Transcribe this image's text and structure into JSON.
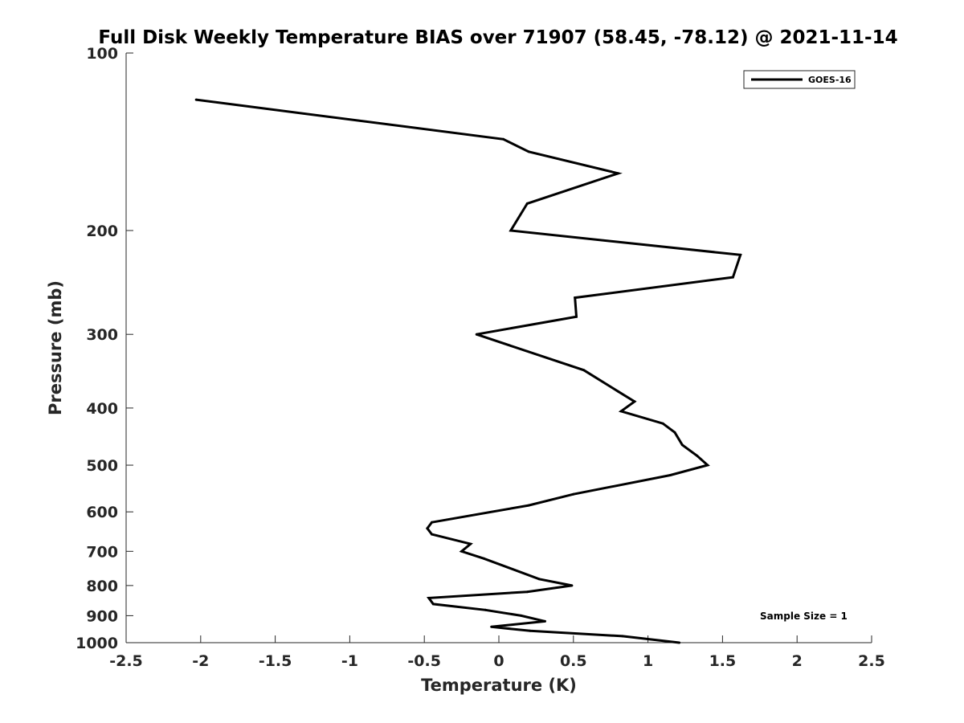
{
  "chart_data": {
    "type": "line",
    "title": "Full Disk Weekly Temperature BIAS over 71907 (58.45, -78.12) @ 2021-11-14",
    "xlabel": "Temperature (K)",
    "ylabel": "Pressure (mb)",
    "xlim": [
      -2.5,
      2.5
    ],
    "ylim": [
      100,
      1000
    ],
    "y_scale": "log",
    "y_reversed": true,
    "x_ticks": [
      "-2.5",
      "-2",
      "-1.5",
      "-1",
      "-0.5",
      "0",
      "0.5",
      "1",
      "1.5",
      "2",
      "2.5"
    ],
    "y_ticks": [
      "100",
      "200",
      "300",
      "400",
      "500",
      "600",
      "700",
      "800",
      "900",
      "1000"
    ],
    "grid": false,
    "legend_position": "top-right",
    "annotation": "Sample Size = 1",
    "series": [
      {
        "name": "GOES-16",
        "color": "#000000",
        "points": [
          {
            "x": -2.03,
            "p": 120
          },
          {
            "x": 0.03,
            "p": 140
          },
          {
            "x": 0.2,
            "p": 147
          },
          {
            "x": 0.8,
            "p": 160
          },
          {
            "x": 0.19,
            "p": 180
          },
          {
            "x": 0.08,
            "p": 200
          },
          {
            "x": 1.62,
            "p": 220
          },
          {
            "x": 1.57,
            "p": 240
          },
          {
            "x": 0.51,
            "p": 260
          },
          {
            "x": 0.52,
            "p": 280
          },
          {
            "x": -0.15,
            "p": 300
          },
          {
            "x": 0.57,
            "p": 345
          },
          {
            "x": 0.8,
            "p": 375
          },
          {
            "x": 0.91,
            "p": 390
          },
          {
            "x": 0.82,
            "p": 405
          },
          {
            "x": 1.1,
            "p": 425
          },
          {
            "x": 1.18,
            "p": 440
          },
          {
            "x": 1.23,
            "p": 462
          },
          {
            "x": 1.33,
            "p": 482
          },
          {
            "x": 1.4,
            "p": 500
          },
          {
            "x": 1.15,
            "p": 520
          },
          {
            "x": 0.5,
            "p": 560
          },
          {
            "x": 0.2,
            "p": 585
          },
          {
            "x": -0.45,
            "p": 625
          },
          {
            "x": -0.48,
            "p": 640
          },
          {
            "x": -0.45,
            "p": 655
          },
          {
            "x": -0.19,
            "p": 680
          },
          {
            "x": -0.25,
            "p": 700
          },
          {
            "x": -0.1,
            "p": 720
          },
          {
            "x": 0.27,
            "p": 780
          },
          {
            "x": 0.49,
            "p": 800
          },
          {
            "x": 0.19,
            "p": 820
          },
          {
            "x": -0.47,
            "p": 840
          },
          {
            "x": -0.44,
            "p": 860
          },
          {
            "x": -0.09,
            "p": 880
          },
          {
            "x": 0.15,
            "p": 900
          },
          {
            "x": 0.31,
            "p": 920
          },
          {
            "x": -0.05,
            "p": 940
          },
          {
            "x": 0.21,
            "p": 955
          },
          {
            "x": 0.83,
            "p": 975
          },
          {
            "x": 1.21,
            "p": 1000
          }
        ]
      }
    ]
  }
}
